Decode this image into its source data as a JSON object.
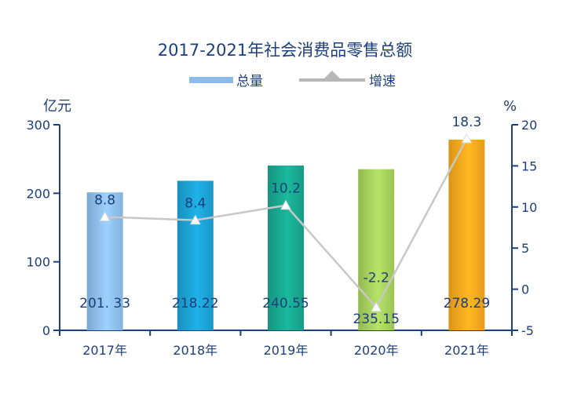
{
  "chart_data": {
    "type": "bar+line",
    "title": "2017-2021年社会消费品零售总额",
    "categories": [
      "2017年",
      "2018年",
      "2019年",
      "2020年",
      "2021年"
    ],
    "series": [
      {
        "name": "总量",
        "type": "bar",
        "axis": "left",
        "values": [
          201.33,
          218.22,
          240.55,
          235.15,
          278.29
        ],
        "value_labels": [
          "201. 33",
          "218.22",
          "240.55",
          "235.15",
          "278.29"
        ]
      },
      {
        "name": "增速",
        "type": "line",
        "axis": "right",
        "values": [
          8.8,
          8.4,
          10.2,
          -2.2,
          18.3
        ],
        "value_labels": [
          "8.8",
          "8.4",
          "10.2",
          "-2.2",
          "18.3"
        ]
      }
    ],
    "bar_colors": [
      "#8bbbe6",
      "#1b9fd0",
      "#17a58c",
      "#a3cc5c",
      "#f4a41c"
    ],
    "line_color": "#c8c8c8",
    "y_left": {
      "unit": "亿元",
      "range": [
        0,
        300
      ],
      "ticks": [
        0,
        100,
        200,
        300
      ]
    },
    "y_right": {
      "unit": "%",
      "range": [
        -5,
        20
      ],
      "ticks": [
        -5,
        0,
        5,
        10,
        15,
        20
      ]
    },
    "grid": false,
    "legend_position": "top-center"
  }
}
